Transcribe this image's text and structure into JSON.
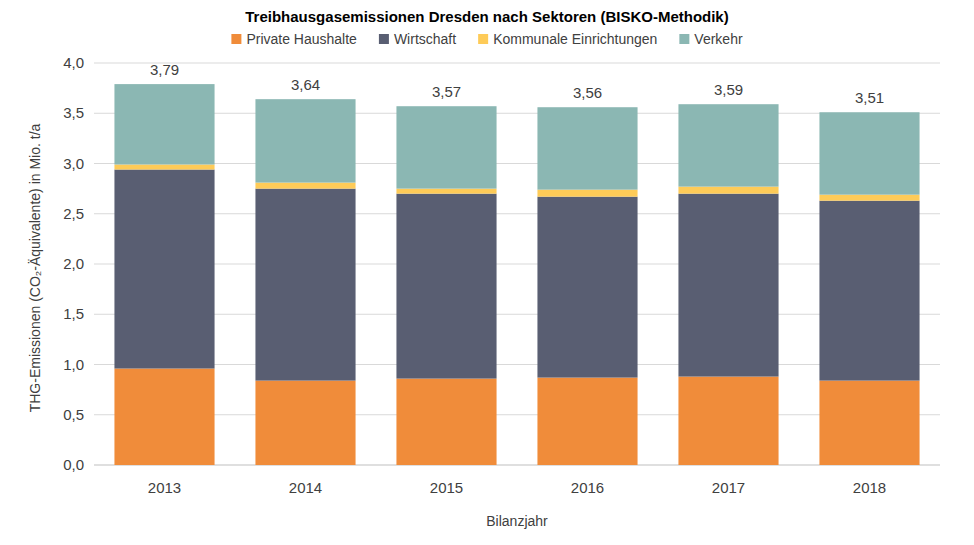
{
  "chart_data": {
    "type": "bar",
    "stacked": true,
    "title": "Treibhausgasemissionen Dresden nach Sektoren (BISKO-Methodik)",
    "x_label": "Bilanzjahr",
    "y_label": "THG-Emissionen (CO₂-Äquivalente) in Mio. t/a",
    "categories": [
      "2013",
      "2014",
      "2015",
      "2016",
      "2017",
      "2018"
    ],
    "series": [
      {
        "name": "Private Haushalte",
        "color": "#f08c3a",
        "values": [
          0.96,
          0.84,
          0.86,
          0.87,
          0.88,
          0.84
        ]
      },
      {
        "name": "Wirtschaft",
        "color": "#595e72",
        "values": [
          1.98,
          1.91,
          1.84,
          1.8,
          1.82,
          1.79
        ]
      },
      {
        "name": "Kommunale Einrichtungen",
        "color": "#fecb58",
        "values": [
          0.05,
          0.06,
          0.05,
          0.07,
          0.07,
          0.06
        ]
      },
      {
        "name": "Verkehr",
        "color": "#8bb7b3",
        "values": [
          0.8,
          0.83,
          0.82,
          0.82,
          0.82,
          0.82
        ]
      }
    ],
    "totals": [
      3.79,
      3.64,
      3.57,
      3.56,
      3.59,
      3.51
    ],
    "total_labels": [
      "3,79",
      "3,64",
      "3,57",
      "3,56",
      "3,59",
      "3,51"
    ],
    "ylim": [
      0,
      4
    ],
    "yticks": [
      {
        "value": 0,
        "label": "0,0"
      },
      {
        "value": 0.5,
        "label": "0,5"
      },
      {
        "value": 1,
        "label": "1,0"
      },
      {
        "value": 1.5,
        "label": "1,5"
      },
      {
        "value": 2,
        "label": "2,0"
      },
      {
        "value": 2.5,
        "label": "2,5"
      },
      {
        "value": 3,
        "label": "3,0"
      },
      {
        "value": 3.5,
        "label": "3,5"
      },
      {
        "value": 4,
        "label": "4,0"
      }
    ],
    "grid": true,
    "legend": "top"
  }
}
